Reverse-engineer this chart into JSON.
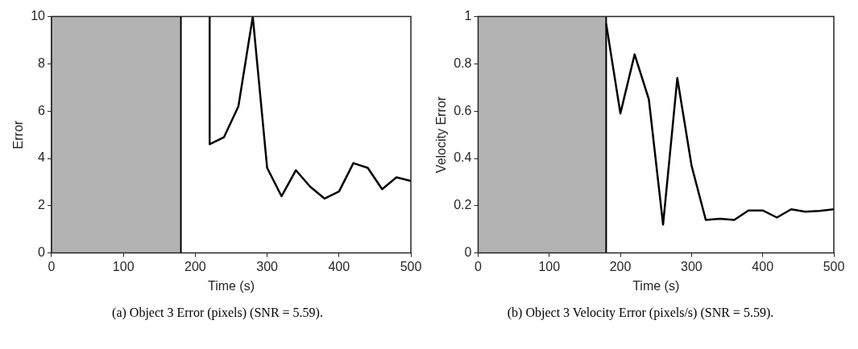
{
  "chart_data": [
    {
      "type": "line",
      "xlabel": "Time (s)",
      "ylabel": "Error",
      "annotations": [
        "(a)  Object 3 Error (pixels) (SNR = 5.59)."
      ],
      "series": [
        {
          "color": "#000000",
          "x": [
            220,
            220,
            240,
            260,
            280,
            300,
            320,
            340,
            360,
            380,
            400,
            420,
            440,
            460,
            480,
            500
          ],
          "values": [
            10,
            4.6,
            4.9,
            6.2,
            10,
            3.6,
            2.4,
            3.5,
            2.8,
            2.3,
            2.6,
            3.8,
            3.6,
            2.7,
            3.2,
            3.05
          ]
        }
      ],
      "bands": [
        {
          "axis": "x",
          "from": 0,
          "to": 180,
          "color": "#b3b3b3"
        }
      ],
      "ref_lines": [
        {
          "axis": "x",
          "value": 180,
          "color": "#000000"
        }
      ],
      "xlim": [
        0,
        500
      ],
      "xticks": [
        0,
        100,
        200,
        300,
        400,
        500
      ],
      "ylim": [
        0,
        10
      ],
      "yticks": [
        0,
        2,
        4,
        6,
        8,
        10
      ],
      "grid": false,
      "legend": false,
      "marker": "none",
      "line_style": "solid"
    },
    {
      "type": "line",
      "xlabel": "Time (s)",
      "ylabel": "Velocity Error",
      "annotations": [
        "(b)  Object 3 Velocity Error (pixels/s) (SNR = 5.59)."
      ],
      "series": [
        {
          "color": "#000000",
          "x": [
            180,
            200,
            220,
            240,
            260,
            280,
            300,
            320,
            340,
            360,
            380,
            400,
            420,
            440,
            460,
            480,
            500
          ],
          "values": [
            0.97,
            0.59,
            0.84,
            0.65,
            0.12,
            0.74,
            0.37,
            0.14,
            0.145,
            0.14,
            0.18,
            0.18,
            0.15,
            0.185,
            0.175,
            0.178,
            0.185
          ]
        }
      ],
      "bands": [
        {
          "axis": "x",
          "from": 0,
          "to": 180,
          "color": "#b3b3b3"
        }
      ],
      "ref_lines": [
        {
          "axis": "x",
          "value": 180,
          "color": "#000000"
        }
      ],
      "xlim": [
        0,
        500
      ],
      "xticks": [
        0,
        100,
        200,
        300,
        400,
        500
      ],
      "ylim": [
        0,
        1
      ],
      "yticks": [
        0,
        0.2,
        0.4,
        0.6,
        0.8,
        1
      ],
      "grid": false,
      "legend": false,
      "marker": "none",
      "line_style": "solid"
    }
  ]
}
